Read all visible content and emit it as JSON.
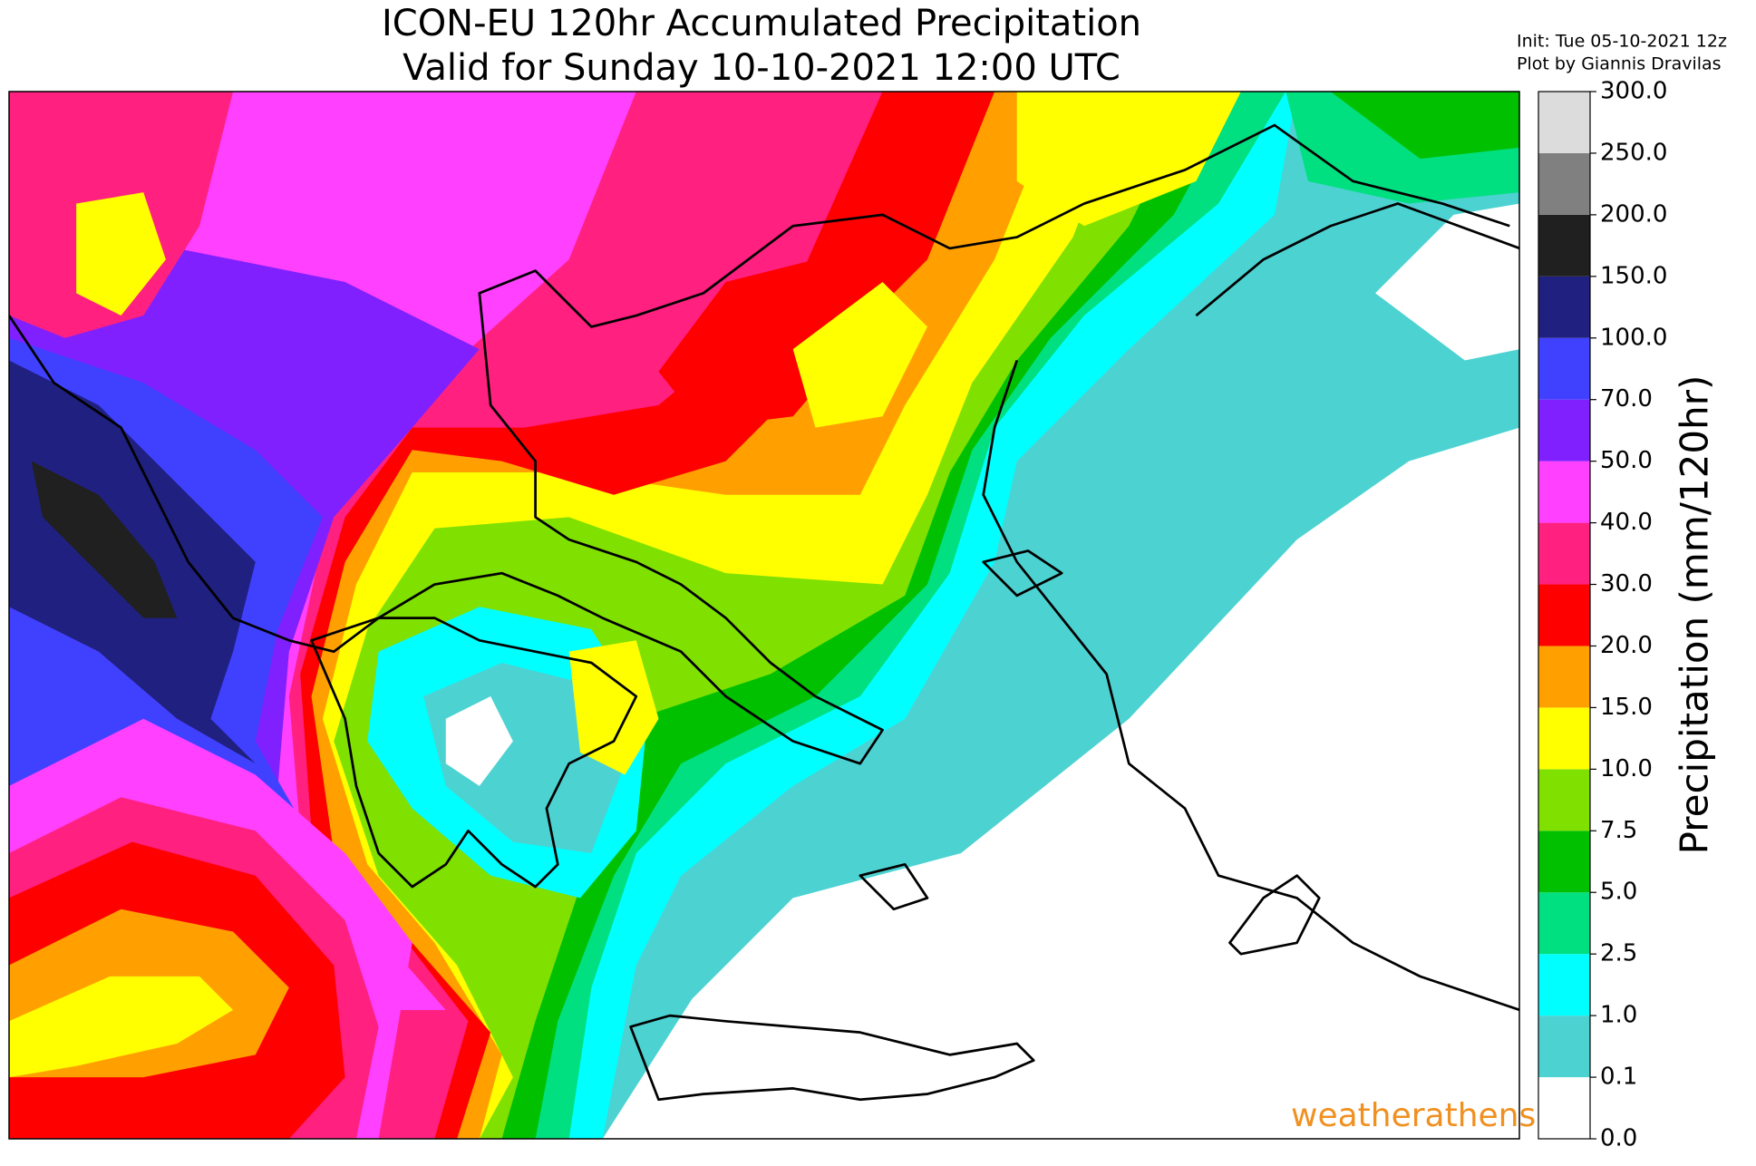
{
  "title": [
    "ICON-EU 120hr Accumulated Precipitation",
    "Valid for Sunday 10-10-2021 12:00 UTC"
  ],
  "info": [
    "Init: Tue 05-10-2021 12z",
    "Plot by Giannis Dravilas"
  ],
  "logo": "weatherathens",
  "colorbar": {
    "label": "Precipitation (mm/120hr)",
    "ticks": [
      {
        "value": 0,
        "label": "0.0"
      },
      {
        "value": 0.1,
        "label": "0.1"
      },
      {
        "value": 1,
        "label": "1.0"
      },
      {
        "value": 2.5,
        "label": "2.5"
      },
      {
        "value": 5,
        "label": "5.0"
      },
      {
        "value": 7.5,
        "label": "7.5"
      },
      {
        "value": 10,
        "label": "10.0"
      },
      {
        "value": 15,
        "label": "15.0"
      },
      {
        "value": 20,
        "label": "20.0"
      },
      {
        "value": 30,
        "label": "30.0"
      },
      {
        "value": 40,
        "label": "40.0"
      },
      {
        "value": 50,
        "label": "50.0"
      },
      {
        "value": 70,
        "label": "70.0"
      },
      {
        "value": 100,
        "label": "100.0"
      },
      {
        "value": 150,
        "label": "150.0"
      },
      {
        "value": 200,
        "label": "200.0"
      },
      {
        "value": 250,
        "label": "250.0"
      },
      {
        "value": 300,
        "label": "300.0"
      }
    ],
    "colors": [
      "#ffffff",
      "#4dd2d2",
      "#00ffff",
      "#00e080",
      "#00c000",
      "#80e000",
      "#ffff00",
      "#ffa000",
      "#ff0000",
      "#ff2080",
      "#ff40ff",
      "#8020ff",
      "#4040ff",
      "#202080",
      "#202020",
      "#808080",
      "#dcdcdc"
    ]
  }
}
